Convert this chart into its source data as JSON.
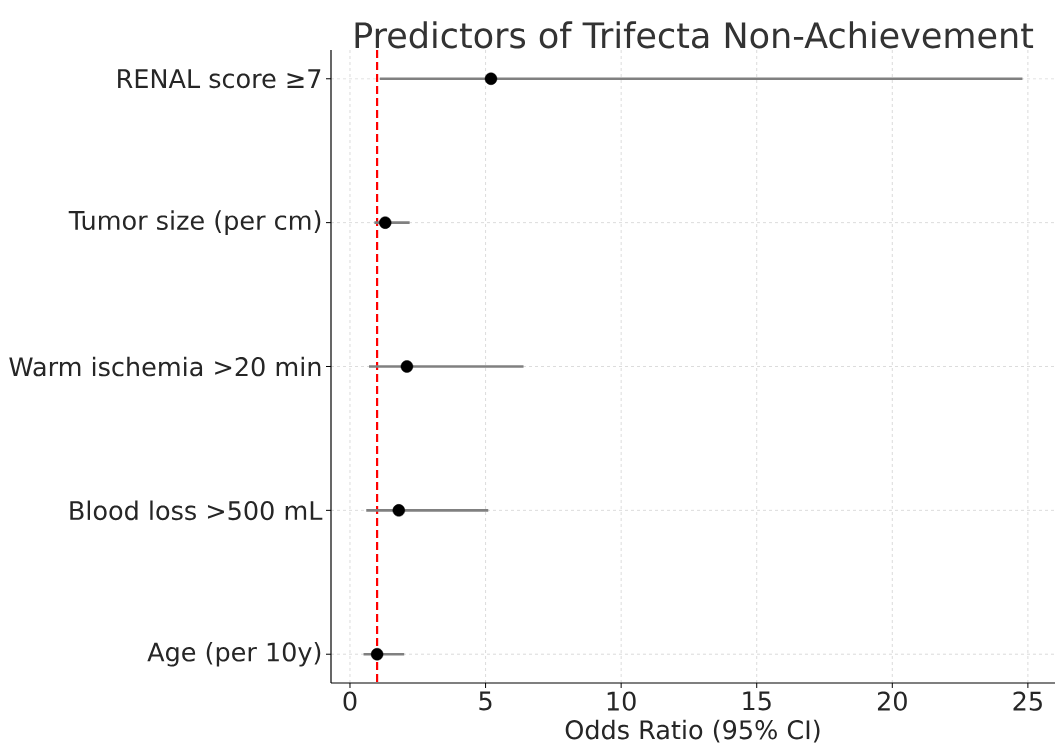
{
  "chart_data": {
    "type": "scatter",
    "orientation": "horizontal",
    "title": "Predictors of Trifecta Non-Achievement",
    "xlabel": "Odds Ratio (95% CI)",
    "categories": [
      "RENAL score ≥7",
      "Tumor size (per cm)",
      "Warm ischemia >20 min",
      "Blood loss >500 mL",
      "Age (per 10y)"
    ],
    "values": [
      5.2,
      1.3,
      2.1,
      1.8,
      1.0
    ],
    "errors": [
      [
        1.1,
        24.8
      ],
      [
        0.9,
        2.2
      ],
      [
        0.7,
        6.4
      ],
      [
        0.6,
        5.1
      ],
      [
        0.5,
        2.0
      ]
    ],
    "color": "#000000",
    "marker": "circle",
    "grid": true,
    "xlim": [
      -0.7,
      26
    ],
    "xticks": [
      0,
      5,
      10,
      15,
      20,
      25
    ],
    "ref_lines": [
      {
        "axis": "x",
        "value": 1,
        "color": "#ff0000",
        "line_style": "dashed"
      }
    ]
  }
}
